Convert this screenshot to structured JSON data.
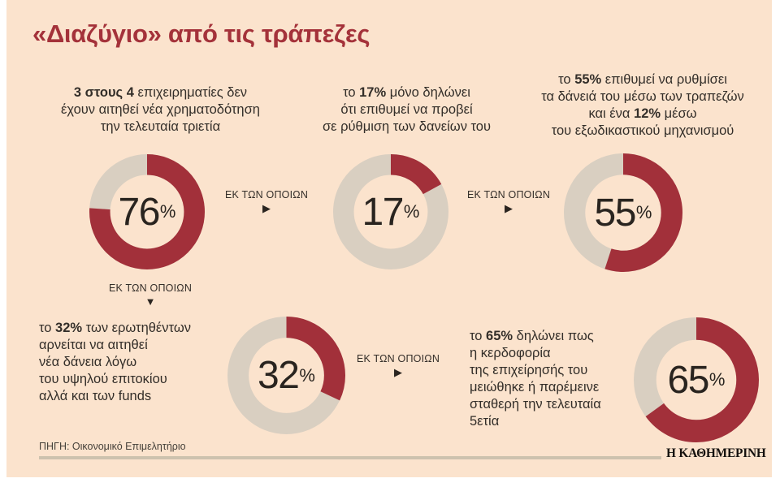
{
  "title": "«Διαζύγιο» από τις τράπεζες",
  "colors": {
    "background": "#fbe3cd",
    "accent_red": "#a2303a",
    "ring_rest": "#d9cfc1",
    "text_dark": "#332e29",
    "rule_tan": "#cdc2ae"
  },
  "chart_data": {
    "type": "pie",
    "variant": "donut",
    "title": "«Διαζύγιο» από τις τράπεζες",
    "source": "ΠΗΓΗ: Οικονομικό Επιμελητήριο",
    "palette": {
      "filled": "#a2303a",
      "rest": "#d9cfc1"
    },
    "start_angle_deg": 0,
    "direction": "clockwise",
    "donuts": [
      {
        "id": "donut-76",
        "value": 76,
        "rest": 24,
        "center_value": "76",
        "center_unit": "%",
        "caption": "3 στους 4 επιχειρηματίες δεν έχουν αιτηθεί νέα χρηματοδότηση την τελευταία τριετία"
      },
      {
        "id": "donut-17",
        "value": 17,
        "rest": 83,
        "center_value": "17",
        "center_unit": "%",
        "caption": "το 17% μόνο δηλώνει ότι επιθυμεί να προβεί σε ρύθμιση των δανείων του"
      },
      {
        "id": "donut-55",
        "value": 55,
        "rest": 45,
        "center_value": "55",
        "center_unit": "%",
        "caption": "το 55% επιθυμεί να ρυθμίσει τα δάνειά του μέσω των τραπεζών και ένα 12% μέσω του εξωδικαστικού μηχανισμού"
      },
      {
        "id": "donut-32",
        "value": 32,
        "rest": 68,
        "center_value": "32",
        "center_unit": "%",
        "caption": "το 32% των ερωτηθέντων αρνείται να αιτηθεί νέα δάνεια λόγω του υψηλού επιτοκίου αλλά και των funds"
      },
      {
        "id": "donut-65",
        "value": 65,
        "rest": 35,
        "center_value": "65",
        "center_unit": "%",
        "caption": "το 65% δηλώνει πως η κερδοφορία της επιχείρησής του μειώθηκε ή παρέμεινε σταθερή την τελευταία 5ετία"
      }
    ]
  },
  "annotations": [
    {
      "lines": [
        [
          {
            "t": "3 στους 4",
            "b": true
          },
          {
            "t": " επιχειρηματίες δεν",
            "b": false
          }
        ],
        [
          {
            "t": "έχουν αιτηθεί νέα χρηματοδότηση",
            "b": false
          }
        ],
        [
          {
            "t": "την τελευταία τριετία",
            "b": false
          }
        ]
      ]
    },
    {
      "lines": [
        [
          {
            "t": "το ",
            "b": false
          },
          {
            "t": "17%",
            "b": true
          },
          {
            "t": " μόνο δηλώνει",
            "b": false
          }
        ],
        [
          {
            "t": "ότι επιθυμεί να προβεί",
            "b": false
          }
        ],
        [
          {
            "t": "σε ρύθμιση των δανείων του",
            "b": false
          }
        ]
      ]
    },
    {
      "lines": [
        [
          {
            "t": "το ",
            "b": false
          },
          {
            "t": "55%",
            "b": true
          },
          {
            "t": " επιθυμεί να ρυθμίσει",
            "b": false
          }
        ],
        [
          {
            "t": "τα δάνειά του μέσω των τραπεζών",
            "b": false
          }
        ],
        [
          {
            "t": "και ένα ",
            "b": false
          },
          {
            "t": "12%",
            "b": true
          },
          {
            "t": " μέσω",
            "b": false
          }
        ],
        [
          {
            "t": "του εξωδικαστικού μηχανισμού",
            "b": false
          }
        ]
      ]
    },
    {
      "lines": [
        [
          {
            "t": "το ",
            "b": false
          },
          {
            "t": "32%",
            "b": true
          },
          {
            "t": " των ερωτηθέντων",
            "b": false
          }
        ],
        [
          {
            "t": "αρνείται να αιτηθεί",
            "b": false
          }
        ],
        [
          {
            "t": "νέα δάνεια λόγω",
            "b": false
          }
        ],
        [
          {
            "t": "του υψηλού επιτοκίου",
            "b": false
          }
        ],
        [
          {
            "t": "αλλά και των funds",
            "b": false
          }
        ]
      ]
    },
    {
      "lines": [
        [
          {
            "t": "το ",
            "b": false
          },
          {
            "t": "65%",
            "b": true
          },
          {
            "t": " δηλώνει πως",
            "b": false
          }
        ],
        [
          {
            "t": "η κερδοφορία",
            "b": false
          }
        ],
        [
          {
            "t": "της επιχείρησής του",
            "b": false
          }
        ],
        [
          {
            "t": "μειώθηκε ή παρέμεινε",
            "b": false
          }
        ],
        [
          {
            "t": "σταθερή την τελευταία",
            "b": false
          }
        ],
        [
          {
            "t": "5ετία",
            "b": false
          }
        ]
      ]
    }
  ],
  "connectors": [
    {
      "label": "ΕΚ ΤΩΝ ΟΠΟΙΩΝ",
      "arrow": "right",
      "arrow_glyph": "▶"
    },
    {
      "label": "ΕΚ ΤΩΝ ΟΠΟΙΩΝ",
      "arrow": "right",
      "arrow_glyph": "▶"
    },
    {
      "label": "ΕΚ ΤΩΝ ΟΠΟΙΩΝ",
      "arrow": "down",
      "arrow_glyph": "▼"
    },
    {
      "label": "ΕΚ ΤΩΝ ΟΠΟΙΩΝ",
      "arrow": "right",
      "arrow_glyph": "▶"
    }
  ],
  "footer": {
    "source": "ΠΗΓΗ: Οικονομικό Επιμελητήριο",
    "brand": "Η ΚΑΘΗΜΕΡΙΝΗ"
  }
}
